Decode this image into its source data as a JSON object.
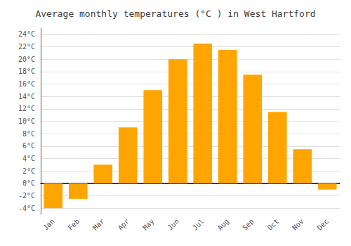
{
  "chart_data": {
    "type": "bar",
    "title": "Average monthly temperatures (°C ) in West Hartford",
    "categories": [
      "Jan",
      "Feb",
      "Mar",
      "Apr",
      "May",
      "Jun",
      "Jul",
      "Aug",
      "Sep",
      "Oct",
      "Nov",
      "Dec"
    ],
    "values": [
      -4.0,
      -2.5,
      3.0,
      9.0,
      15.0,
      20.0,
      22.5,
      21.5,
      17.5,
      11.5,
      5.5,
      -1.0
    ],
    "color": "#FFA500",
    "ylim": [
      -5,
      25
    ],
    "yticks": [
      {
        "value": -4,
        "label": "-4°C"
      },
      {
        "value": -2,
        "label": "-2°C"
      },
      {
        "value": 0,
        "label": "0°C"
      },
      {
        "value": 2,
        "label": "2°C"
      },
      {
        "value": 4,
        "label": "4°C"
      },
      {
        "value": 6,
        "label": "6°C"
      },
      {
        "value": 8,
        "label": "8°C"
      },
      {
        "value": 10,
        "label": "10°C"
      },
      {
        "value": 12,
        "label": "12°C"
      },
      {
        "value": 14,
        "label": "14°C"
      },
      {
        "value": 16,
        "label": "16°C"
      },
      {
        "value": 18,
        "label": "18°C"
      },
      {
        "value": 20,
        "label": "20°C"
      },
      {
        "value": 22,
        "label": "22°C"
      },
      {
        "value": 24,
        "label": "24°C"
      }
    ],
    "grid": true
  }
}
